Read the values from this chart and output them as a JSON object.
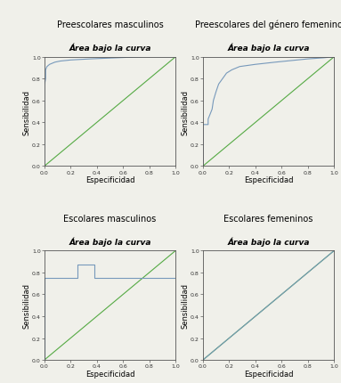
{
  "titles": [
    "Preescolares masculinos",
    "Preescolares del género femenino",
    "Escolares masculinos",
    "Escolares femeninos"
  ],
  "subtitle": "Área bajo la curva",
  "xlabel": "Especificidad",
  "ylabel": "Sensibilidad",
  "roc_curves": [
    {
      "x": [
        0.0,
        0.0,
        0.01,
        0.01,
        0.02,
        0.04,
        0.06,
        0.08,
        0.12,
        0.2,
        0.35,
        0.55,
        0.75,
        1.0
      ],
      "y": [
        0.0,
        0.74,
        0.8,
        0.88,
        0.91,
        0.93,
        0.94,
        0.95,
        0.96,
        0.97,
        0.98,
        0.99,
        1.0,
        1.0
      ]
    },
    {
      "x": [
        0.0,
        0.0,
        0.04,
        0.04,
        0.07,
        0.08,
        0.1,
        0.12,
        0.15,
        0.18,
        0.22,
        0.28,
        0.4,
        0.55,
        0.8,
        0.92,
        1.0
      ],
      "y": [
        0.0,
        0.38,
        0.38,
        0.43,
        0.52,
        0.6,
        0.68,
        0.75,
        0.8,
        0.85,
        0.88,
        0.91,
        0.93,
        0.95,
        0.98,
        0.99,
        1.0
      ]
    },
    {
      "x": [
        0.0,
        0.0,
        0.0,
        0.25,
        0.25,
        0.38,
        0.38,
        1.0
      ],
      "y": [
        0.0,
        0.0,
        0.75,
        0.75,
        0.87,
        0.87,
        0.75,
        0.75
      ]
    },
    {
      "x": [
        0.0,
        1.0
      ],
      "y": [
        0.0,
        1.0
      ]
    }
  ],
  "roc_color": "#7799bb",
  "diag_color": "#55aa44",
  "bg_color": "#f0f0ea",
  "tick_fontsize": 4.5,
  "label_fontsize": 6.0,
  "group_title_fontsize": 7.0,
  "subtitle_fontsize": 6.5,
  "tick_color": "#333333",
  "spine_color": "#555555"
}
